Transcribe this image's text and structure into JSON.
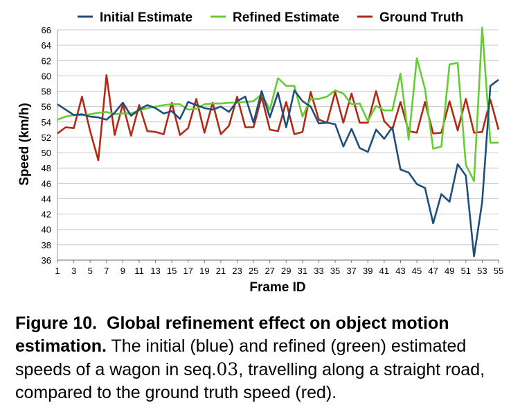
{
  "chart_data": {
    "type": "line",
    "xlabel": "Frame ID",
    "ylabel": "Speed (km/h)",
    "ylim": [
      36,
      66
    ],
    "yticks": [
      36,
      38,
      40,
      42,
      44,
      46,
      48,
      50,
      52,
      54,
      56,
      58,
      60,
      62,
      64,
      66
    ],
    "xticks": [
      1,
      3,
      5,
      7,
      9,
      11,
      13,
      15,
      17,
      19,
      21,
      23,
      25,
      27,
      29,
      31,
      33,
      35,
      37,
      39,
      41,
      43,
      45,
      47,
      49,
      51,
      53,
      55
    ],
    "xlim": [
      1,
      55
    ],
    "grid": "horizontal",
    "legend": "top",
    "x": [
      1,
      2,
      3,
      4,
      5,
      6,
      7,
      8,
      9,
      10,
      11,
      12,
      13,
      14,
      15,
      16,
      17,
      18,
      19,
      20,
      21,
      22,
      23,
      24,
      25,
      26,
      27,
      28,
      29,
      30,
      31,
      32,
      33,
      34,
      35,
      36,
      37,
      38,
      39,
      40,
      41,
      42,
      43,
      44,
      45,
      46,
      47,
      48,
      49,
      50,
      51,
      52,
      53,
      54,
      55
    ],
    "series": [
      {
        "name": "Initial Estimate",
        "color": "#1f4e79",
        "values": [
          56.3,
          55.6,
          54.9,
          55.0,
          54.7,
          54.6,
          54.3,
          55.2,
          56.5,
          54.8,
          55.6,
          56.2,
          55.8,
          55.1,
          55.4,
          54.4,
          56.6,
          56.2,
          55.8,
          55.6,
          56.0,
          55.3,
          56.7,
          57.3,
          53.9,
          58.0,
          54.6,
          57.8,
          53.3,
          58.1,
          56.7,
          56.0,
          53.8,
          53.9,
          53.7,
          50.8,
          53.1,
          50.6,
          50.1,
          53.0,
          51.8,
          53.3,
          47.8,
          47.4,
          45.9,
          45.4,
          40.8,
          44.6,
          43.6,
          48.5,
          47.0,
          36.5,
          43.6,
          58.7,
          59.5
        ]
      },
      {
        "name": "Refined Estimate",
        "color": "#66cc33",
        "values": [
          54.3,
          54.7,
          54.9,
          54.9,
          55.0,
          55.2,
          55.3,
          55.0,
          55.1,
          55.1,
          55.5,
          55.8,
          56.0,
          56.2,
          56.3,
          56.3,
          55.6,
          55.7,
          56.3,
          56.4,
          56.4,
          56.5,
          56.5,
          56.6,
          56.7,
          57.6,
          55.6,
          59.7,
          58.7,
          58.7,
          54.7,
          57.0,
          57.0,
          57.3,
          58.1,
          57.7,
          56.3,
          56.4,
          54.1,
          56.1,
          55.5,
          55.5,
          60.3,
          51.7,
          62.3,
          58.3,
          50.5,
          50.8,
          61.5,
          61.7,
          48.4,
          46.3,
          66.3,
          51.3,
          51.3
        ]
      },
      {
        "name": "Ground Truth",
        "color": "#b22a14",
        "values": [
          52.5,
          53.3,
          53.2,
          57.3,
          52.8,
          49.0,
          60.1,
          52.3,
          56.3,
          52.2,
          56.2,
          52.8,
          52.7,
          52.4,
          56.5,
          52.3,
          53.2,
          57.0,
          52.6,
          56.5,
          52.4,
          53.5,
          57.3,
          53.3,
          53.3,
          57.3,
          53.0,
          52.8,
          56.6,
          52.4,
          52.7,
          57.9,
          54.3,
          53.9,
          57.9,
          53.9,
          57.7,
          53.9,
          53.9,
          58.0,
          54.1,
          53.0,
          56.6,
          52.8,
          52.6,
          56.6,
          52.5,
          52.6,
          56.7,
          52.9,
          57.0,
          52.6,
          52.7,
          56.9,
          53.0
        ]
      }
    ]
  },
  "caption": {
    "label": "Figure 10.",
    "title": "Global refinement effect on object motion estimation.",
    "body_before": "The initial (blue) and refined (green) estimated speeds of a wagon in seq.",
    "seq_number": "03",
    "body_after": ", travelling along a straight road, compared to the ground truth speed (red)."
  }
}
